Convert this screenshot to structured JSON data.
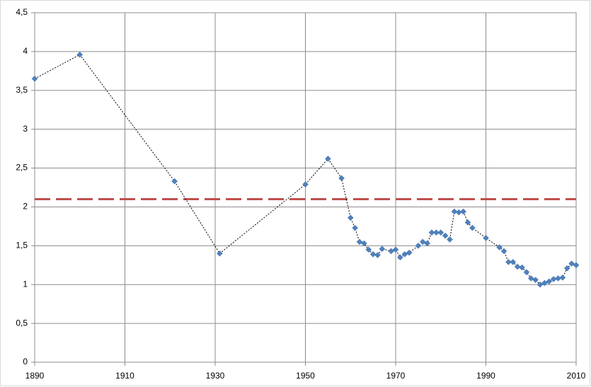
{
  "chart_data": {
    "type": "scatter",
    "x": [
      1890,
      1900,
      1921,
      1931,
      1950,
      1955,
      1958,
      1960,
      1961,
      1962,
      1963,
      1964,
      1965,
      1966,
      1967,
      1969,
      1970,
      1971,
      1972,
      1973,
      1975,
      1976,
      1977,
      1978,
      1979,
      1980,
      1981,
      1982,
      1983,
      1984,
      1985,
      1986,
      1987,
      1990,
      1993,
      1994,
      1995,
      1996,
      1997,
      1998,
      1999,
      2000,
      2001,
      2002,
      2003,
      2004,
      2005,
      2006,
      2007,
      2008,
      2009,
      2010
    ],
    "values": [
      3.65,
      3.96,
      2.33,
      1.4,
      2.29,
      2.62,
      2.37,
      1.86,
      1.73,
      1.55,
      1.53,
      1.45,
      1.39,
      1.38,
      1.46,
      1.43,
      1.45,
      1.35,
      1.39,
      1.41,
      1.5,
      1.55,
      1.53,
      1.67,
      1.67,
      1.67,
      1.63,
      1.58,
      1.94,
      1.93,
      1.94,
      1.8,
      1.73,
      1.6,
      1.48,
      1.43,
      1.29,
      1.29,
      1.23,
      1.22,
      1.16,
      1.08,
      1.06,
      1.0,
      1.02,
      1.04,
      1.07,
      1.08,
      1.09,
      1.21,
      1.27,
      1.25
    ],
    "color": "#4f81bd",
    "line": true,
    "line_color": "#000000",
    "reference_line": {
      "value": 2.1,
      "color": "#c0504d"
    },
    "xlim": [
      1890,
      2010
    ],
    "xticks": [
      1890,
      1910,
      1930,
      1950,
      1970,
      1990,
      2010
    ],
    "ylim": [
      0,
      4.5
    ],
    "yticks": [
      0,
      {
        "value": 0.5,
        "label": "0,5"
      },
      1,
      {
        "value": 1.5,
        "label": "1,5"
      },
      2,
      {
        "value": 2.5,
        "label": "2,5"
      },
      3,
      {
        "value": 3.5,
        "label": "3,5"
      },
      4,
      {
        "value": 4.5,
        "label": "4,5"
      }
    ],
    "grid": true
  }
}
